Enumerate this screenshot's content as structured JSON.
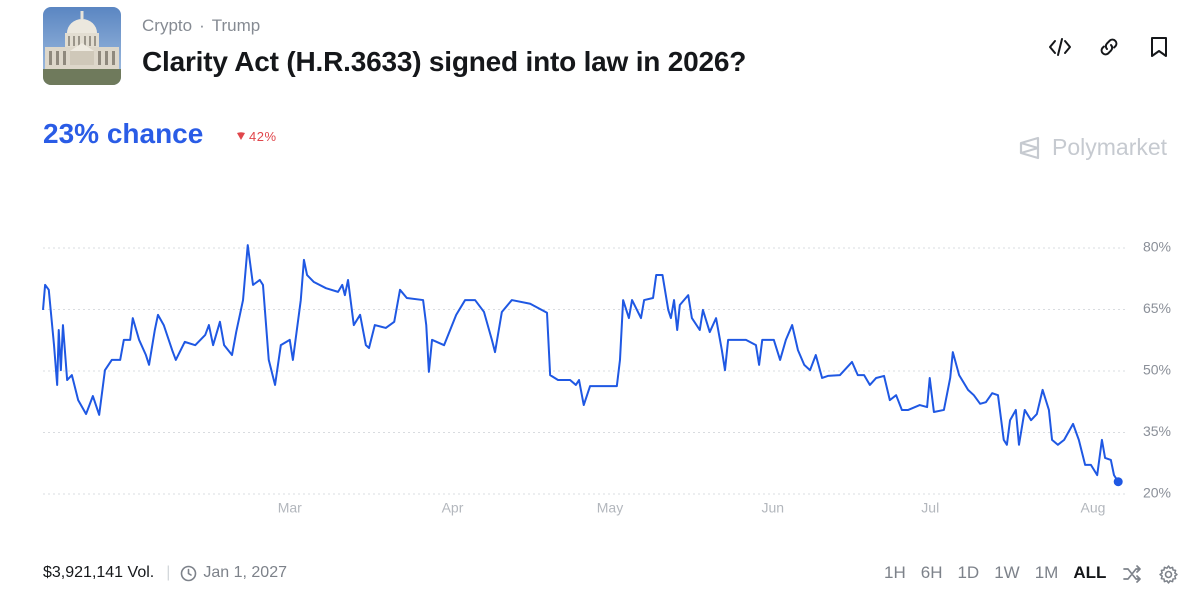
{
  "header": {
    "category": "Crypto",
    "tag": "Trump",
    "title": "Clarity Act (H.R.3633) signed into law in 2026?"
  },
  "chance": {
    "text": "23% chance",
    "change": "42%"
  },
  "brand": "Polymarket",
  "chart_data": {
    "type": "line",
    "color": "#1f58e3",
    "grid": true,
    "xlim": [
      13,
      218
    ],
    "ylim": [
      18,
      82
    ],
    "xticks": [
      {
        "value": 60,
        "label": "Mar"
      },
      {
        "value": 91,
        "label": "Apr"
      },
      {
        "value": 121,
        "label": "May"
      },
      {
        "value": 152,
        "label": "Jun"
      },
      {
        "value": 182,
        "label": "Jul"
      },
      {
        "value": 213,
        "label": "Aug"
      }
    ],
    "yticks": [
      {
        "value": 20,
        "label": "20%"
      },
      {
        "value": 35,
        "label": "35%"
      },
      {
        "value": 50,
        "label": "50%"
      },
      {
        "value": 65,
        "label": "65%"
      },
      {
        "value": 80,
        "label": "80%"
      }
    ],
    "x": [
      13,
      13.4,
      14.1,
      15.1,
      15.7,
      16,
      16.4,
      16.8,
      17.6,
      18.5,
      19.7,
      21.2,
      22.5,
      23.7,
      24.8,
      26.1,
      27.7,
      28.4,
      29.6,
      30.1,
      31.3,
      32.6,
      33.2,
      34.3,
      34.9,
      36,
      37.6,
      38.3,
      40,
      42,
      43.9,
      44.6,
      45.4,
      46.7,
      47.5,
      49,
      49.8,
      51.1,
      52,
      53,
      54.3,
      54.9,
      56,
      57.2,
      58.3,
      60,
      60.6,
      62.1,
      62.7,
      63.3,
      64.6,
      66.9,
      69.2,
      70,
      70.5,
      71.1,
      72.2,
      73.4,
      74.5,
      75.1,
      76.2,
      78.3,
      79.9,
      81,
      82.3,
      85.4,
      86,
      86.5,
      87.1,
      89.4,
      91.7,
      93.4,
      95.3,
      97,
      98.5,
      99.1,
      100.4,
      102.3,
      105.8,
      109,
      109.6,
      111.1,
      113.4,
      114.5,
      115.1,
      116,
      117.2,
      119.1,
      122.3,
      122.9,
      123.5,
      124.6,
      125.2,
      126.9,
      127.5,
      129.2,
      129.8,
      131,
      132.1,
      132.6,
      133.2,
      133.8,
      134.3,
      135.9,
      136.6,
      138.1,
      138.7,
      140,
      141.2,
      142.3,
      142.9,
      143.5,
      144.6,
      146.9,
      148.8,
      149.4,
      150,
      152.2,
      153.4,
      154.5,
      155.7,
      156.8,
      158,
      159.1,
      160.2,
      161.4,
      162.5,
      164.8,
      167.1,
      168.2,
      169.4,
      170.5,
      171.7,
      173.2,
      174.3,
      175.5,
      176.6,
      177.8,
      180,
      181.4,
      181.9,
      182.7,
      184.6,
      185.8,
      186.3,
      187.5,
      189.2,
      190.3,
      191.5,
      192.6,
      193.8,
      194.9,
      196,
      196.6,
      197.2,
      198.3,
      198.9,
      200,
      201.2,
      202.3,
      203.4,
      204.6,
      205.2,
      206.3,
      207.5,
      209.2,
      210.3,
      211.5,
      212.6,
      213.8,
      214.7,
      215.3,
      216.4,
      217,
      217.8
    ],
    "values": [
      64.9,
      71,
      69.8,
      56.3,
      46.6,
      60,
      50.2,
      61.2,
      47.8,
      49,
      42.9,
      39.5,
      43.9,
      39.3,
      50.2,
      52.7,
      52.7,
      57.6,
      57.6,
      62.9,
      57.6,
      53.9,
      51.5,
      60,
      63.7,
      61.2,
      55.1,
      52.7,
      57.1,
      56.3,
      58.8,
      61.2,
      56.3,
      62,
      56.3,
      53.9,
      59.5,
      67.3,
      80.7,
      71,
      72.2,
      71,
      52.7,
      46.6,
      56.3,
      57.6,
      52.7,
      67.3,
      77.1,
      73.4,
      71.7,
      70.2,
      69.3,
      71,
      68.5,
      72.2,
      61.2,
      63.7,
      56.3,
      55.6,
      61.2,
      60.5,
      62,
      69.8,
      67.8,
      67.3,
      61.2,
      49.8,
      57.6,
      56.3,
      63.7,
      67.3,
      67.3,
      64.4,
      57.6,
      54.6,
      64.4,
      67.3,
      66.4,
      64.2,
      49,
      47.8,
      47.8,
      46.6,
      47.8,
      41.7,
      46.3,
      46.3,
      46.3,
      52.7,
      67.3,
      62.9,
      67.3,
      62.9,
      67.3,
      67.8,
      73.4,
      73.4,
      64.9,
      62.9,
      67.3,
      60,
      66.1,
      68.5,
      62.9,
      60,
      64.9,
      59.5,
      62.9,
      55.1,
      50.2,
      57.6,
      57.6,
      57.6,
      56.3,
      51.5,
      57.6,
      57.6,
      52.7,
      57.6,
      61.2,
      55.1,
      51.5,
      50.2,
      53.9,
      48.3,
      48.8,
      49,
      52.2,
      49,
      49,
      46.6,
      48.3,
      48.8,
      42.9,
      44.1,
      40.5,
      40.5,
      41.7,
      41.2,
      48.3,
      40,
      40.5,
      48.3,
      54.6,
      49,
      45.4,
      44.1,
      42,
      42.4,
      44.6,
      44.1,
      33.2,
      32,
      38,
      40.5,
      32,
      40.5,
      38,
      39.5,
      45.4,
      40.5,
      33.2,
      32,
      33.2,
      37.1,
      33.2,
      27.1,
      27.1,
      24.6,
      33.2,
      28.8,
      28.3,
      24.6,
      23
    ]
  },
  "footer": {
    "volume": "$3,921,141 Vol.",
    "end_date": "Jan 1, 2027",
    "ranges": [
      "1H",
      "6H",
      "1D",
      "1W",
      "1M",
      "ALL"
    ]
  }
}
